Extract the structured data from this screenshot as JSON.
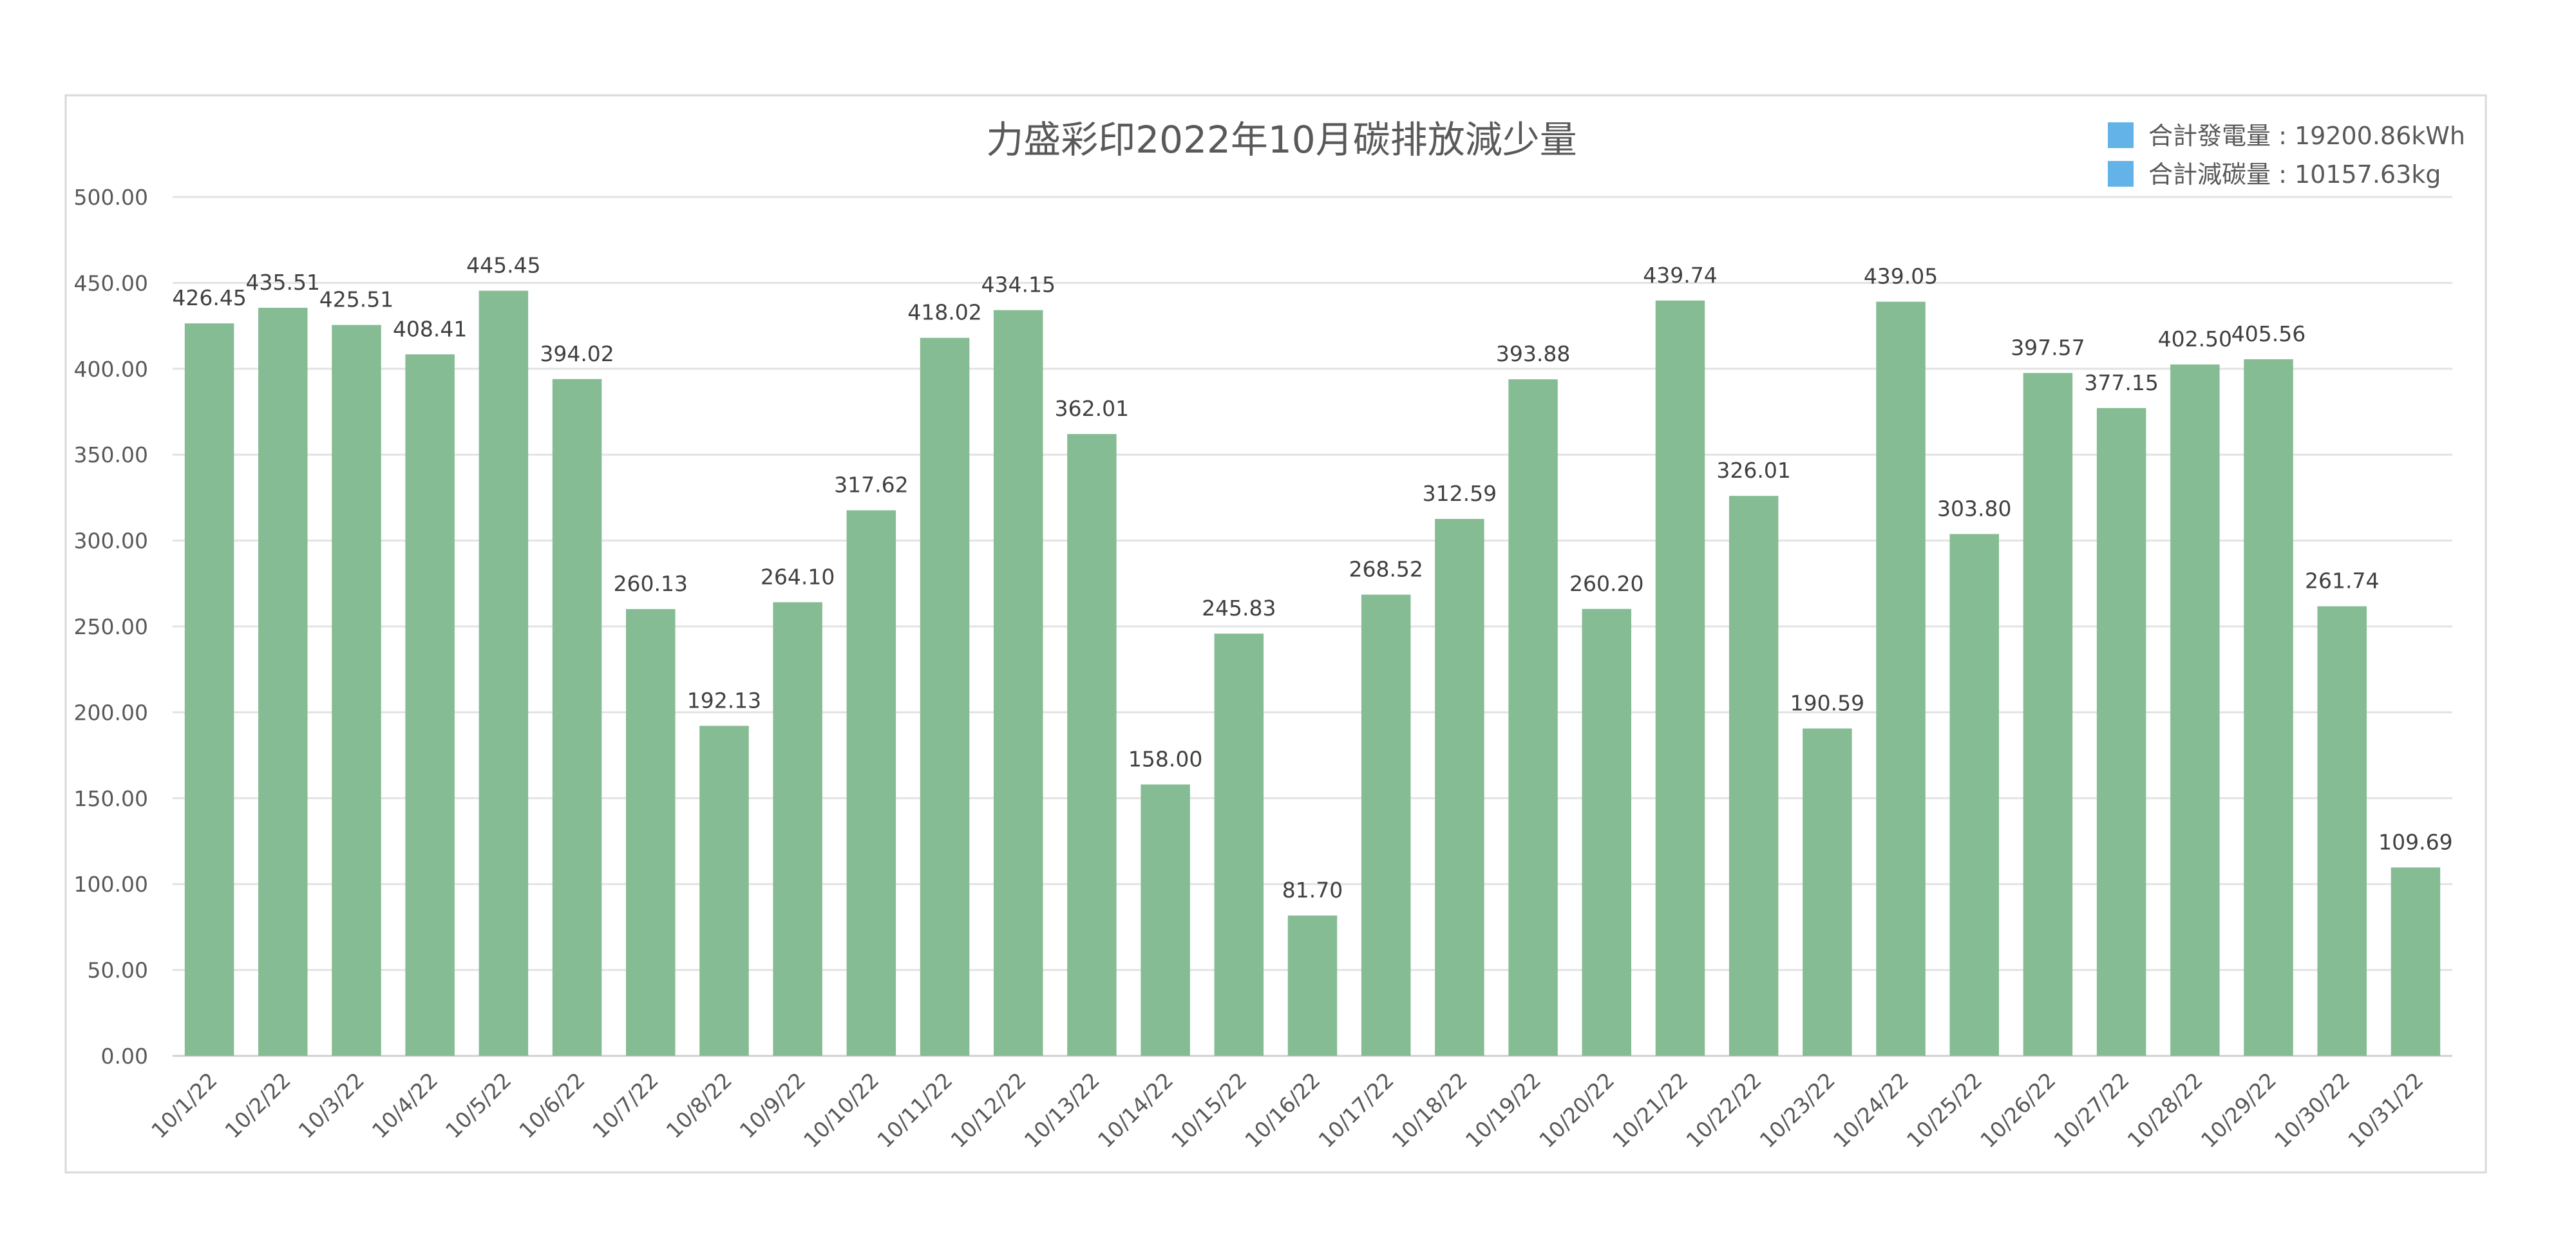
{
  "chart_data": {
    "type": "bar",
    "title": "力盛彩印2022年10月碳排放減少量",
    "xlabel": "",
    "ylabel": "",
    "ylim": [
      0,
      500
    ],
    "yticks": [
      "0.00",
      "50.00",
      "100.00",
      "150.00",
      "200.00",
      "250.00",
      "300.00",
      "350.00",
      "400.00",
      "450.00",
      "500.00"
    ],
    "grid": true,
    "legend_position": "top-right",
    "legend": [
      {
        "label": "合計發電量 : 19200.86kWh",
        "color": "#63B3E8"
      },
      {
        "label": "合計減碳量 : 10157.63kg",
        "color": "#63B3E8"
      }
    ],
    "bar_color": "#86BC94",
    "categories": [
      "10/1/22",
      "10/2/22",
      "10/3/22",
      "10/4/22",
      "10/5/22",
      "10/6/22",
      "10/7/22",
      "10/8/22",
      "10/9/22",
      "10/10/22",
      "10/11/22",
      "10/12/22",
      "10/13/22",
      "10/14/22",
      "10/15/22",
      "10/16/22",
      "10/17/22",
      "10/18/22",
      "10/19/22",
      "10/20/22",
      "10/21/22",
      "10/22/22",
      "10/23/22",
      "10/24/22",
      "10/25/22",
      "10/26/22",
      "10/27/22",
      "10/28/22",
      "10/29/22",
      "10/30/22",
      "10/31/22"
    ],
    "values": [
      426.45,
      435.51,
      425.51,
      408.41,
      445.45,
      394.02,
      260.13,
      192.13,
      264.1,
      317.62,
      418.02,
      434.15,
      362.01,
      158.0,
      245.83,
      81.7,
      268.52,
      312.59,
      393.88,
      260.2,
      439.74,
      326.01,
      190.59,
      439.05,
      303.8,
      397.57,
      377.15,
      402.5,
      405.56,
      261.74,
      109.69
    ]
  }
}
